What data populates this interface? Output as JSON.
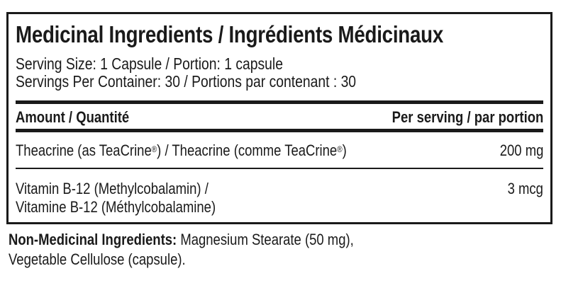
{
  "panel": {
    "title": "Medicinal Ingredients / Ingrédients Médicinaux",
    "serving_size": "Serving Size: 1 Capsule / Portion: 1 capsule",
    "servings_per_container": "Servings Per Container: 30 / Portions par contenant : 30",
    "header_amount": "Amount / Quantité",
    "header_per_serving": "Per serving / par portion",
    "rows": [
      {
        "name_a": "Theacrine (as TeaCrine",
        "reg1": "®",
        "name_b": ") / Theacrine (comme TeaCrine",
        "reg2": "®",
        "name_c": ")",
        "amount": "200 mg"
      },
      {
        "line1": "Vitamin B-12 (Methylcobalamin) /",
        "line2": "Vitamine B-12 (Méthylcobalamine)",
        "amount": "3 mcg"
      }
    ]
  },
  "non_medicinal": {
    "label": "Non-Medicinal Ingredients:",
    "text1": " Magnesium Stearate (50 mg),",
    "text2": "Vegetable Cellulose (capsule)."
  }
}
